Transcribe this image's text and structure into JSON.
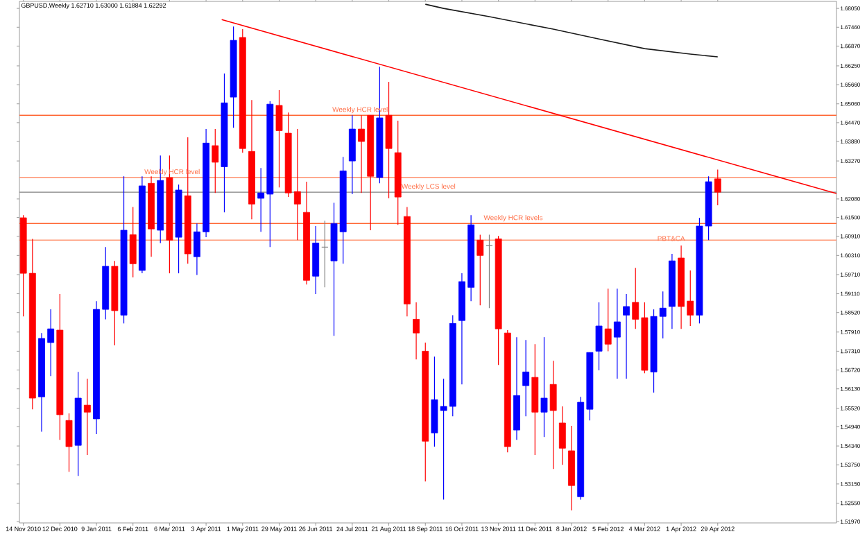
{
  "chart_data": {
    "type": "candlestick",
    "title": "GBPUSD,Weekly 1.62710 1.63000 1.61884 1.62292",
    "x": [
      "2010-11-14",
      "2010-11-21",
      "2010-11-28",
      "2010-12-05",
      "2010-12-12",
      "2010-12-19",
      "2010-12-26",
      "2011-01-02",
      "2011-01-09",
      "2011-01-16",
      "2011-01-23",
      "2011-01-30",
      "2011-02-06",
      "2011-02-13",
      "2011-02-20",
      "2011-02-27",
      "2011-03-06",
      "2011-03-13",
      "2011-03-20",
      "2011-03-27",
      "2011-04-03",
      "2011-04-10",
      "2011-04-17",
      "2011-04-24",
      "2011-05-01",
      "2011-05-08",
      "2011-05-15",
      "2011-05-22",
      "2011-05-29",
      "2011-06-05",
      "2011-06-12",
      "2011-06-19",
      "2011-06-26",
      "2011-07-03",
      "2011-07-10",
      "2011-07-17",
      "2011-07-24",
      "2011-07-31",
      "2011-08-07",
      "2011-08-14",
      "2011-08-21",
      "2011-08-28",
      "2011-09-04",
      "2011-09-11",
      "2011-09-18",
      "2011-09-25",
      "2011-10-02",
      "2011-10-09",
      "2011-10-16",
      "2011-10-23",
      "2011-10-30",
      "2011-11-06",
      "2011-11-13",
      "2011-11-20",
      "2011-11-27",
      "2011-12-04",
      "2011-12-11",
      "2011-12-18",
      "2011-12-25",
      "2012-01-01",
      "2012-01-08",
      "2012-01-15",
      "2012-01-22",
      "2012-01-29",
      "2012-02-05",
      "2012-02-12",
      "2012-02-19",
      "2012-02-26",
      "2012-03-04",
      "2012-03-11",
      "2012-03-18",
      "2012-03-25",
      "2012-04-01",
      "2012-04-08",
      "2012-04-15",
      "2012-04-22",
      "2012-04-29"
    ],
    "ohlc": [
      [
        1.6149,
        1.6157,
        1.584,
        1.5975
      ],
      [
        1.5975,
        1.6083,
        1.5549,
        1.5584
      ],
      [
        1.5588,
        1.5788,
        1.5479,
        1.5771
      ],
      [
        1.5758,
        1.5862,
        1.5653,
        1.5801
      ],
      [
        1.5797,
        1.591,
        1.5453,
        1.5532
      ],
      [
        1.5514,
        1.5536,
        1.5353,
        1.5432
      ],
      [
        1.5436,
        1.5666,
        1.534,
        1.5584
      ],
      [
        1.5562,
        1.5645,
        1.5406,
        1.554
      ],
      [
        1.5519,
        1.5888,
        1.5471,
        1.5862
      ],
      [
        1.5862,
        1.6057,
        1.5831,
        1.5997
      ],
      [
        1.5997,
        1.6014,
        1.5749,
        1.5858
      ],
      [
        1.5844,
        1.6279,
        1.5818,
        1.611
      ],
      [
        1.6096,
        1.6183,
        1.5962,
        1.6005
      ],
      [
        1.5984,
        1.6279,
        1.5975,
        1.6249
      ],
      [
        1.6257,
        1.6279,
        1.6027,
        1.6114
      ],
      [
        1.611,
        1.6344,
        1.607,
        1.6266
      ],
      [
        1.6275,
        1.6344,
        1.5975,
        1.6079
      ],
      [
        1.6088,
        1.6253,
        1.5975,
        1.6236
      ],
      [
        1.6218,
        1.6401,
        1.6005,
        1.6036
      ],
      [
        1.6027,
        1.6131,
        1.597,
        1.6105
      ],
      [
        1.6105,
        1.6427,
        1.6088,
        1.6383
      ],
      [
        1.6375,
        1.6427,
        1.6227,
        1.6323
      ],
      [
        1.6309,
        1.6601,
        1.6166,
        1.6509
      ],
      [
        1.6527,
        1.6748,
        1.6431,
        1.6705
      ],
      [
        1.6714,
        1.674,
        1.6353,
        1.6366
      ],
      [
        1.6357,
        1.6518,
        1.6144,
        1.6192
      ],
      [
        1.621,
        1.6305,
        1.6105,
        1.6227
      ],
      [
        1.6223,
        1.6514,
        1.6057,
        1.6505
      ],
      [
        1.6501,
        1.6549,
        1.6244,
        1.6422
      ],
      [
        1.6414,
        1.6479,
        1.6214,
        1.6227
      ],
      [
        1.6231,
        1.6427,
        1.6079,
        1.6192
      ],
      [
        1.6166,
        1.6262,
        1.594,
        1.5953
      ],
      [
        1.5966,
        1.6123,
        1.591,
        1.607
      ],
      [
        1.6057,
        1.614,
        1.5931,
        1.6057
      ],
      [
        1.6014,
        1.6196,
        1.5779,
        1.6131
      ],
      [
        1.6105,
        1.634,
        1.6005,
        1.6296
      ],
      [
        1.6327,
        1.647,
        1.6223,
        1.6427
      ],
      [
        1.6427,
        1.647,
        1.6227,
        1.6388
      ],
      [
        1.647,
        1.647,
        1.611,
        1.6279
      ],
      [
        1.6275,
        1.6622,
        1.6257,
        1.6462
      ],
      [
        1.647,
        1.6575,
        1.621,
        1.6366
      ],
      [
        1.6353,
        1.6453,
        1.6127,
        1.6214
      ],
      [
        1.6153,
        1.6183,
        1.584,
        1.5879
      ],
      [
        1.5831,
        1.5884,
        1.5705,
        1.5788
      ],
      [
        1.5731,
        1.5758,
        1.5323,
        1.5449
      ],
      [
        1.5475,
        1.5714,
        1.5432,
        1.5579
      ],
      [
        1.5545,
        1.5645,
        1.5266,
        1.5558
      ],
      [
        1.5558,
        1.5844,
        1.5527,
        1.5818
      ],
      [
        1.5827,
        1.5975,
        1.5627,
        1.5949
      ],
      [
        1.5931,
        1.6157,
        1.5888,
        1.6127
      ],
      [
        1.6079,
        1.6096,
        1.5875,
        1.6031
      ],
      [
        1.6062,
        1.6096,
        1.5866,
        1.6062
      ],
      [
        1.6083,
        1.6092,
        1.5688,
        1.5801
      ],
      [
        1.5788,
        1.5797,
        1.5414,
        1.5432
      ],
      [
        1.5484,
        1.5775,
        1.5453,
        1.5592
      ],
      [
        1.5623,
        1.5766,
        1.5527,
        1.5666
      ],
      [
        1.5649,
        1.5753,
        1.5406,
        1.554
      ],
      [
        1.554,
        1.5775,
        1.5462,
        1.5584
      ],
      [
        1.5627,
        1.5701,
        1.5362,
        1.5545
      ],
      [
        1.5506,
        1.5558,
        1.5375,
        1.5427
      ],
      [
        1.5419,
        1.5497,
        1.5232,
        1.531
      ],
      [
        1.5275,
        1.5588,
        1.5266,
        1.5571
      ],
      [
        1.5549,
        1.5727,
        1.5514,
        1.5727
      ],
      [
        1.5731,
        1.5884,
        1.5671,
        1.581
      ],
      [
        1.5801,
        1.5927,
        1.5731,
        1.5753
      ],
      [
        1.5775,
        1.5927,
        1.5645,
        1.5823
      ],
      [
        1.5844,
        1.591,
        1.5645,
        1.5871
      ],
      [
        1.5884,
        1.5992,
        1.5801,
        1.5831
      ],
      [
        1.5836,
        1.5884,
        1.5662,
        1.5671
      ],
      [
        1.5666,
        1.5862,
        1.5601,
        1.584
      ],
      [
        1.584,
        1.5918,
        1.5771,
        1.5866
      ],
      [
        1.5871,
        1.6036,
        1.5801,
        1.6014
      ],
      [
        1.6023,
        1.6062,
        1.5801,
        1.5871
      ],
      [
        1.5888,
        1.5984,
        1.581,
        1.5844
      ],
      [
        1.5844,
        1.6149,
        1.5818,
        1.6123
      ],
      [
        1.6123,
        1.6279,
        1.6079,
        1.6262
      ],
      [
        1.6271,
        1.63,
        1.61884,
        1.62292
      ]
    ],
    "colors": [
      "#ff0000",
      "#ff0000",
      "#0000ff",
      "#0000ff",
      "#ff0000",
      "#ff0000",
      "#0000ff",
      "#ff0000",
      "#0000ff",
      "#0000ff",
      "#ff0000",
      "#0000ff",
      "#ff0000",
      "#0000ff",
      "#ff0000",
      "#0000ff",
      "#ff0000",
      "#0000ff",
      "#ff0000",
      "#0000ff",
      "#0000ff",
      "#ff0000",
      "#0000ff",
      "#0000ff",
      "#ff0000",
      "#ff0000",
      "#0000ff",
      "#0000ff",
      "#ff0000",
      "#ff0000",
      "#ff0000",
      "#ff0000",
      "#0000ff",
      "#808080",
      "#0000ff",
      "#0000ff",
      "#0000ff",
      "#ff0000",
      "#ff0000",
      "#0000ff",
      "#ff0000",
      "#ff0000",
      "#ff0000",
      "#ff0000",
      "#ff0000",
      "#0000ff",
      "#0000ff",
      "#0000ff",
      "#0000ff",
      "#0000ff",
      "#ff0000",
      "#808080",
      "#ff0000",
      "#ff0000",
      "#0000ff",
      "#0000ff",
      "#ff0000",
      "#0000ff",
      "#ff0000",
      "#ff0000",
      "#ff0000",
      "#0000ff",
      "#0000ff",
      "#0000ff",
      "#ff0000",
      "#0000ff",
      "#0000ff",
      "#ff0000",
      "#ff0000",
      "#0000ff",
      "#0000ff",
      "#0000ff",
      "#ff0000",
      "#ff0000",
      "#0000ff",
      "#0000ff",
      "#ff0000"
    ],
    "series": [
      {
        "type": "line",
        "color": "#ff0000",
        "x": [
          "2011-04-15",
          "2012-07-29"
        ],
        "values": [
          1.677,
          1.6225
        ]
      },
      {
        "type": "line",
        "color": "#1a1a1a",
        "x": [
          "2011-09-18",
          "2011-10-02",
          "2011-11-06",
          "2011-12-25",
          "2012-01-29",
          "2012-03-04",
          "2012-04-08",
          "2012-04-29"
        ],
        "values": [
          1.6818,
          1.6805,
          1.6779,
          1.674,
          1.6709,
          1.6679,
          1.6662,
          1.6653
        ]
      }
    ],
    "ref_lines": [
      {
        "axis": "y",
        "value": 1.647,
        "color": "#ff6633"
      },
      {
        "axis": "y",
        "value": 1.6275,
        "color": "#ff8c69"
      },
      {
        "axis": "y",
        "value": 1.62292,
        "color": "#808080"
      },
      {
        "axis": "y",
        "value": 1.6131,
        "color": "#ff6633"
      },
      {
        "axis": "y",
        "value": 1.6079,
        "color": "#ff9977"
      }
    ],
    "annotations": [
      {
        "text": "Weekly HCR level",
        "x": "2011-07-08",
        "y": 1.647
      },
      {
        "text": "Weekly HCR level",
        "x": "2011-02-14",
        "y": 1.6275
      },
      {
        "text": "Weekly LCS level",
        "x": "2011-08-30",
        "y": 1.62292
      },
      {
        "text": "Weekly HCR levels",
        "x": "2011-11-01",
        "y": 1.6131
      },
      {
        "text": "PBT&CA",
        "x": "2012-03-13",
        "y": 1.607
      }
    ],
    "xlim": [
      "2010-11-11",
      "2012-07-29"
    ],
    "ylim": [
      1.5193,
      1.6827
    ],
    "xticks": [
      {
        "value": "2010-11-14",
        "label": "14 Nov 2010"
      },
      {
        "value": "2010-12-12",
        "label": "12 Dec 2010"
      },
      {
        "value": "2011-01-09",
        "label": "9 Jan 2011"
      },
      {
        "value": "2011-02-06",
        "label": "6 Feb 2011"
      },
      {
        "value": "2011-03-06",
        "label": "6 Mar 2011"
      },
      {
        "value": "2011-04-03",
        "label": "3 Apr 2011"
      },
      {
        "value": "2011-05-01",
        "label": "1 May 2011"
      },
      {
        "value": "2011-05-29",
        "label": "29 May 2011"
      },
      {
        "value": "2011-06-26",
        "label": "26 Jun 2011"
      },
      {
        "value": "2011-07-24",
        "label": "24 Jul 2011"
      },
      {
        "value": "2011-08-21",
        "label": "21 Aug 2011"
      },
      {
        "value": "2011-09-18",
        "label": "18 Sep 2011"
      },
      {
        "value": "2011-10-16",
        "label": "16 Oct 2011"
      },
      {
        "value": "2011-11-13",
        "label": "13 Nov 2011"
      },
      {
        "value": "2011-12-11",
        "label": "11 Dec 2011"
      },
      {
        "value": "2012-01-08",
        "label": "8 Jan 2012"
      },
      {
        "value": "2012-02-05",
        "label": "5 Feb 2012"
      },
      {
        "value": "2012-03-04",
        "label": "4 Mar 2012"
      },
      {
        "value": "2012-04-01",
        "label": "1 Apr 2012"
      },
      {
        "value": "2012-04-29",
        "label": "29 Apr 2012"
      }
    ],
    "yticks": [
      {
        "value": 1.6805,
        "label": "1.68050"
      },
      {
        "value": 1.6746,
        "label": "1.67460"
      },
      {
        "value": 1.6687,
        "label": "1.66870"
      },
      {
        "value": 1.6625,
        "label": "1.66250"
      },
      {
        "value": 1.6566,
        "label": "1.65660"
      },
      {
        "value": 1.6506,
        "label": "1.65060"
      },
      {
        "value": 1.6447,
        "label": "1.64470"
      },
      {
        "value": 1.6388,
        "label": "1.63880"
      },
      {
        "value": 1.6327,
        "label": "1.63270"
      },
      {
        "value": 1.6208,
        "label": "1.62080"
      },
      {
        "value": 1.615,
        "label": "1.61500"
      },
      {
        "value": 1.6091,
        "label": "1.60910"
      },
      {
        "value": 1.6031,
        "label": "1.60310"
      },
      {
        "value": 1.5971,
        "label": "1.59710"
      },
      {
        "value": 1.5911,
        "label": "1.59110"
      },
      {
        "value": 1.5852,
        "label": "1.58520"
      },
      {
        "value": 1.5791,
        "label": "1.57910"
      },
      {
        "value": 1.5731,
        "label": "1.57310"
      },
      {
        "value": 1.5672,
        "label": "1.56720"
      },
      {
        "value": 1.5613,
        "label": "1.56130"
      },
      {
        "value": 1.5552,
        "label": "1.55520"
      },
      {
        "value": 1.5494,
        "label": "1.54940"
      },
      {
        "value": 1.5434,
        "label": "1.54340"
      },
      {
        "value": 1.5375,
        "label": "1.53750"
      },
      {
        "value": 1.5315,
        "label": "1.53150"
      },
      {
        "value": 1.5255,
        "label": "1.52550"
      },
      {
        "value": 1.5197,
        "label": "1.51970"
      }
    ]
  }
}
